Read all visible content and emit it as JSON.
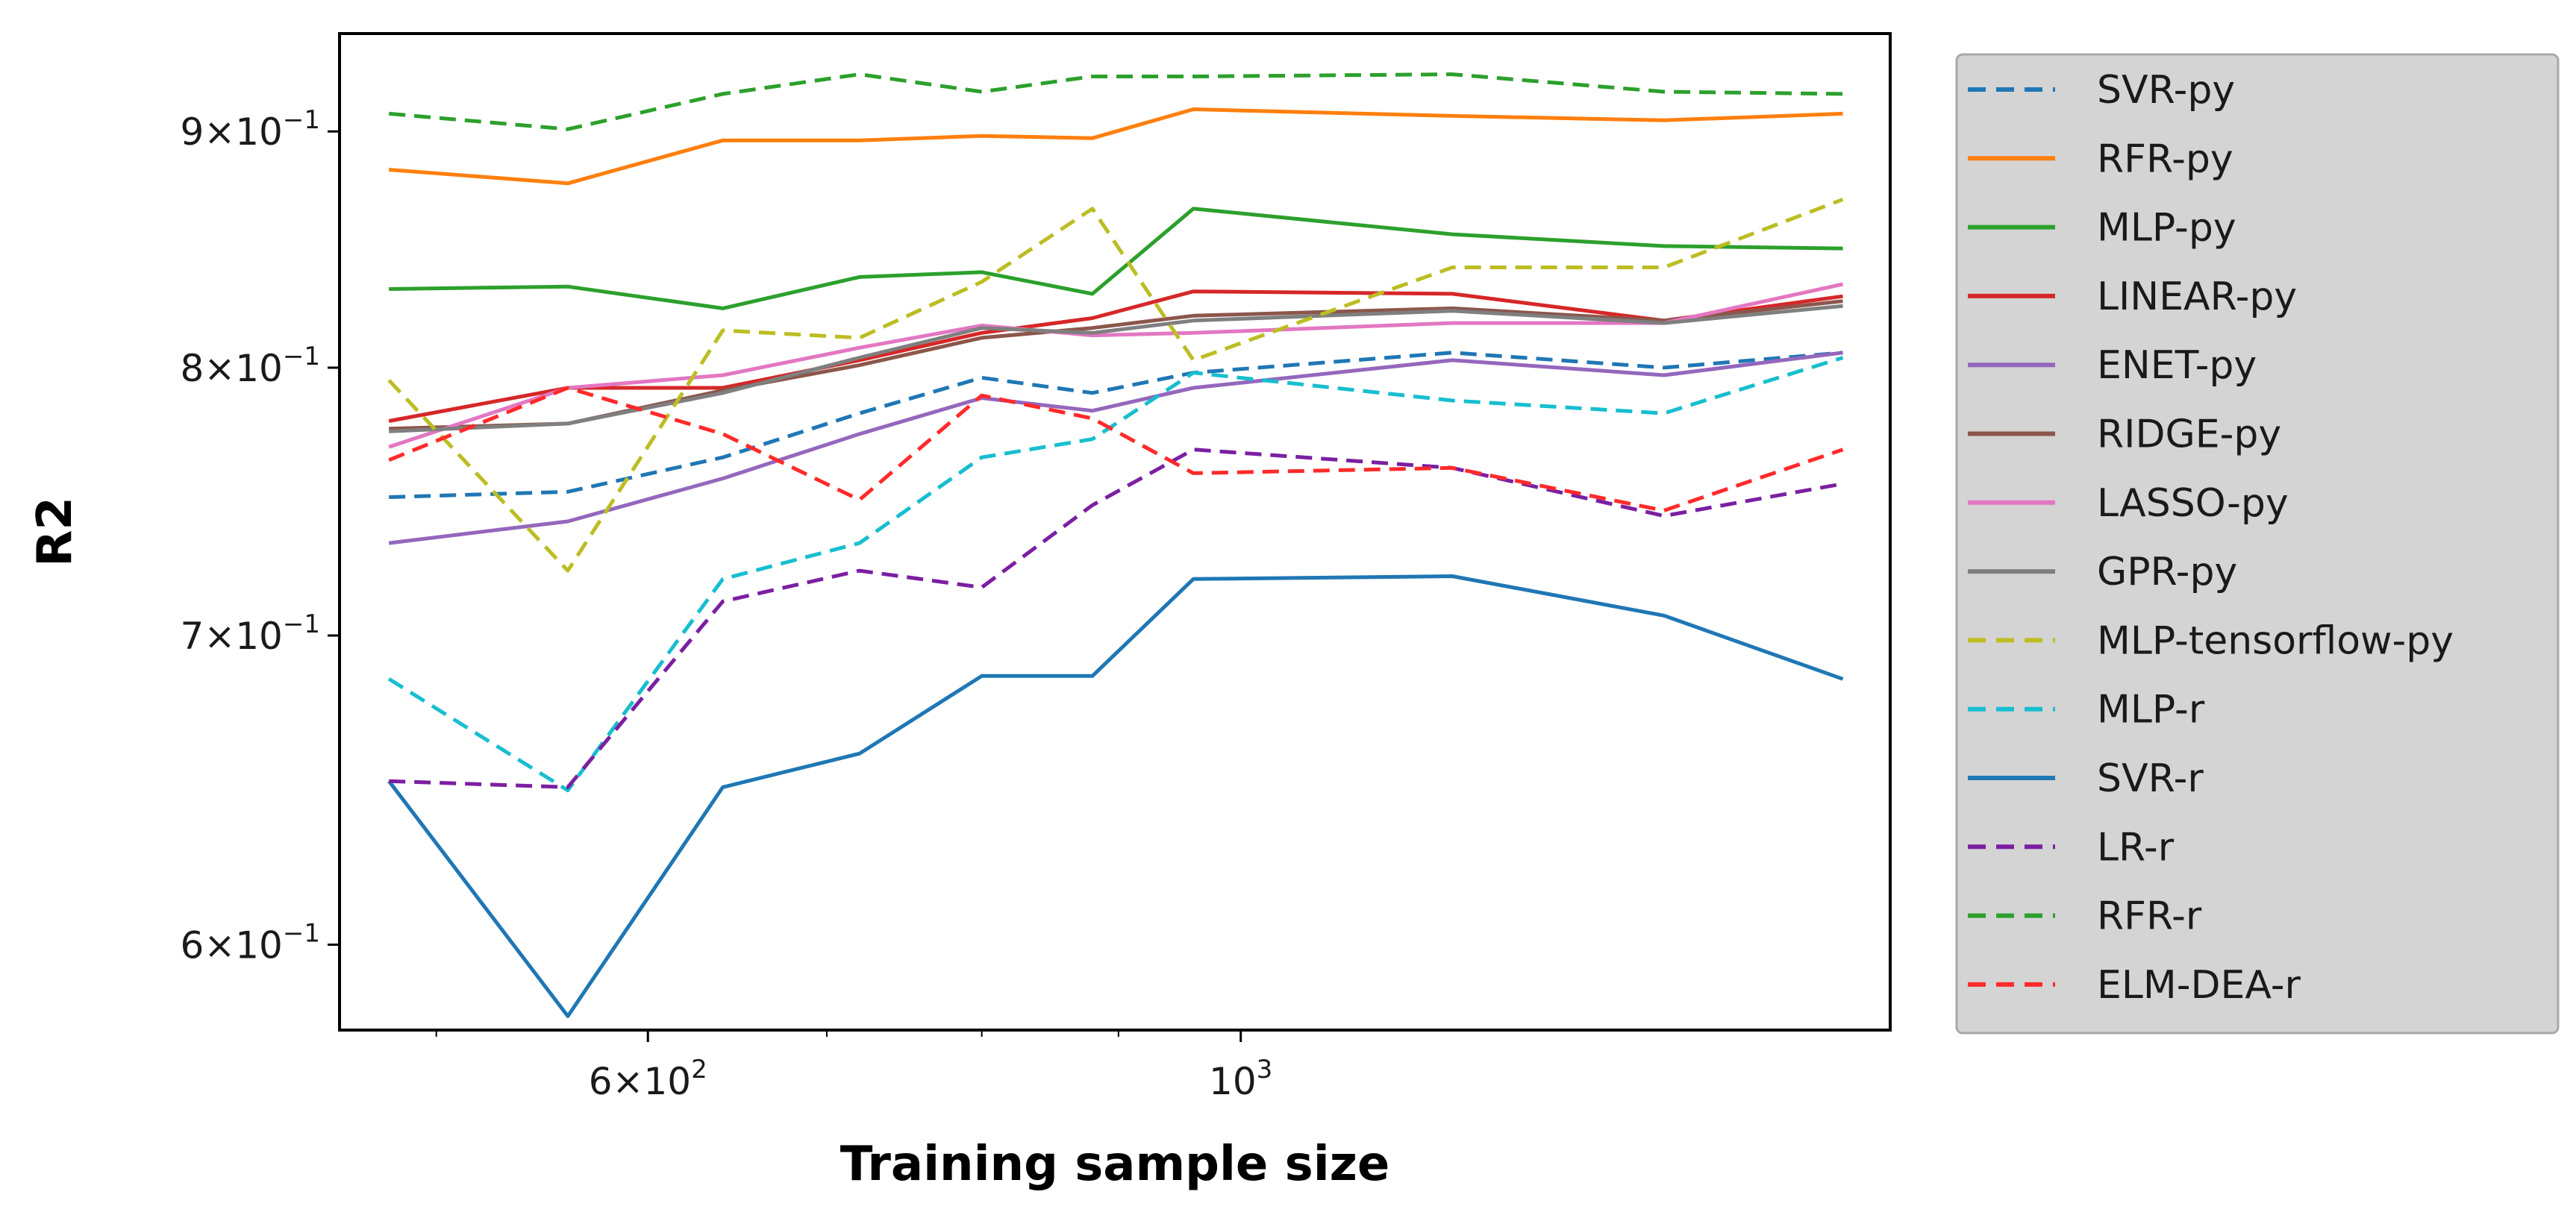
{
  "chart_data": {
    "type": "line",
    "title": "",
    "xlabel": "Training sample size",
    "ylabel": "R2",
    "xscale": "log",
    "yscale": "log",
    "xlim": [
      460,
      1750
    ],
    "ylim": [
      0.575,
      0.945
    ],
    "grid": false,
    "legend_position": "outside-right",
    "legend_background": "#d4d4d4",
    "x_ticks_labeled": [
      {
        "value": 600,
        "mantissa": "6",
        "base": "10",
        "exp": "2"
      },
      {
        "value": 1000,
        "mantissa": "",
        "base": "10",
        "exp": "3"
      }
    ],
    "x_ticks_minor": [
      500,
      700,
      800,
      900
    ],
    "y_ticks_labeled": [
      {
        "value": 0.6,
        "mantissa": "6",
        "base": "10",
        "exp": "−1"
      },
      {
        "value": 0.7,
        "mantissa": "7",
        "base": "10",
        "exp": "−1"
      },
      {
        "value": 0.8,
        "mantissa": "8",
        "base": "10",
        "exp": "−1"
      },
      {
        "value": 0.9,
        "mantissa": "9",
        "base": "10",
        "exp": "−1"
      }
    ],
    "x": [
      480,
      560,
      640,
      720,
      800,
      880,
      960,
      1200,
      1440,
      1680
    ],
    "series": [
      {
        "name": "SVR-py",
        "color": "#1f77b4",
        "dash": true,
        "values": [
          0.75,
          0.752,
          0.765,
          0.782,
          0.796,
          0.79,
          0.798,
          0.806,
          0.8,
          0.806
        ]
      },
      {
        "name": "RFR-py",
        "color": "#ff7f0e",
        "dash": false,
        "values": [
          0.883,
          0.877,
          0.896,
          0.896,
          0.898,
          0.897,
          0.91,
          0.907,
          0.905,
          0.908
        ]
      },
      {
        "name": "MLP-py",
        "color": "#2ca02c",
        "dash": false,
        "values": [
          0.832,
          0.833,
          0.824,
          0.837,
          0.839,
          0.83,
          0.866,
          0.855,
          0.85,
          0.849
        ]
      },
      {
        "name": "LINEAR-py",
        "color": "#d62728",
        "dash": false,
        "values": [
          0.779,
          0.792,
          0.792,
          0.803,
          0.814,
          0.82,
          0.831,
          0.83,
          0.819,
          0.829
        ]
      },
      {
        "name": "ENET-py",
        "color": "#9467bd",
        "dash": false,
        "values": [
          0.733,
          0.741,
          0.757,
          0.774,
          0.788,
          0.783,
          0.792,
          0.803,
          0.797,
          0.806
        ]
      },
      {
        "name": "RIDGE-py",
        "color": "#8c564b",
        "dash": false,
        "values": [
          0.776,
          0.778,
          0.791,
          0.801,
          0.812,
          0.816,
          0.821,
          0.824,
          0.819,
          0.827
        ]
      },
      {
        "name": "LASSO-py",
        "color": "#e377c2",
        "dash": false,
        "values": [
          0.769,
          0.792,
          0.797,
          0.808,
          0.817,
          0.813,
          0.814,
          0.818,
          0.818,
          0.834
        ]
      },
      {
        "name": "GPR-py",
        "color": "#7f7f7f",
        "dash": false,
        "values": [
          0.775,
          0.778,
          0.79,
          0.804,
          0.816,
          0.814,
          0.819,
          0.823,
          0.818,
          0.825
        ]
      },
      {
        "name": "MLP-tensorflow-py",
        "color": "#bcbd22",
        "dash": true,
        "values": [
          0.795,
          0.723,
          0.815,
          0.812,
          0.835,
          0.866,
          0.803,
          0.841,
          0.841,
          0.87
        ]
      },
      {
        "name": "MLP-r",
        "color": "#17becf",
        "dash": true,
        "values": [
          0.685,
          0.648,
          0.72,
          0.733,
          0.765,
          0.772,
          0.798,
          0.787,
          0.782,
          0.804
        ]
      },
      {
        "name": "SVR-r",
        "color": "#1f77b4",
        "dash": false,
        "values": [
          0.651,
          0.579,
          0.649,
          0.66,
          0.686,
          0.686,
          0.72,
          0.721,
          0.707,
          0.685
        ]
      },
      {
        "name": "LR-r",
        "color": "#7b1fa2",
        "dash": true,
        "values": [
          0.651,
          0.649,
          0.712,
          0.723,
          0.717,
          0.747,
          0.768,
          0.761,
          0.743,
          0.755
        ]
      },
      {
        "name": "RFR-r",
        "color": "#2ca02c",
        "dash": true,
        "values": [
          0.908,
          0.901,
          0.917,
          0.926,
          0.918,
          0.925,
          0.925,
          0.926,
          0.918,
          0.917
        ]
      },
      {
        "name": "ELM-DEA-r",
        "color": "#ff2a2a",
        "dash": true,
        "values": [
          0.764,
          0.792,
          0.774,
          0.749,
          0.789,
          0.78,
          0.759,
          0.761,
          0.745,
          0.768
        ]
      }
    ]
  }
}
